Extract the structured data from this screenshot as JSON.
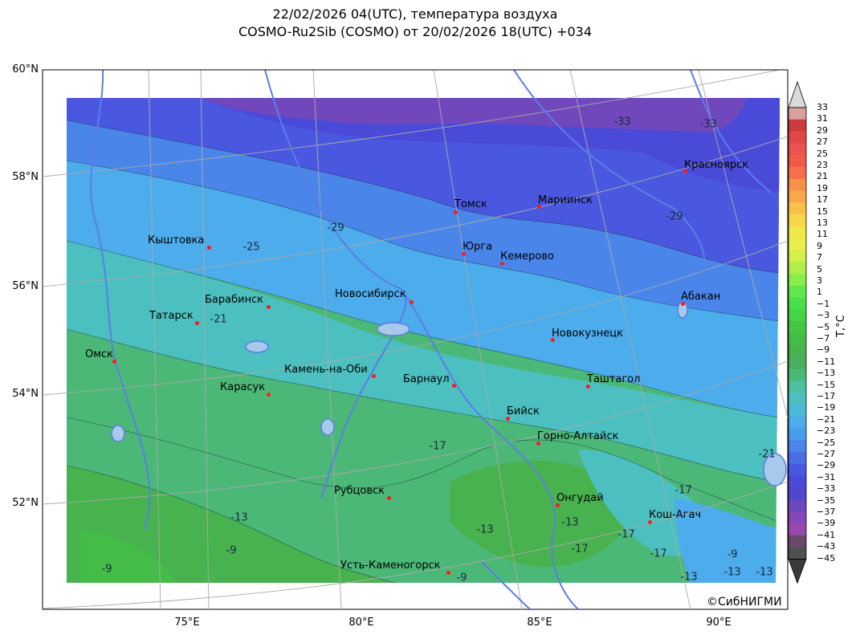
{
  "title": {
    "line1": "22/02/2026 04(UTC), температура воздуха",
    "line2": "COSMO-Ru2Sib (COSMO) от 20/02/2026 18(UTC) +034"
  },
  "axes": {
    "lat_labels": [
      "60°N",
      "58°N",
      "56°N",
      "54°N",
      "52°N"
    ],
    "lon_labels": [
      "75°E",
      "80°E",
      "85°E",
      "90°E"
    ]
  },
  "colorbar": {
    "label": "T,°C",
    "ticks": [
      "33",
      "31",
      "29",
      "27",
      "25",
      "23",
      "21",
      "19",
      "17",
      "15",
      "13",
      "11",
      "9",
      "7",
      "5",
      "3",
      "1",
      "−1",
      "−3",
      "−5",
      "−7",
      "−9",
      "−11",
      "−13",
      "−15",
      "−17",
      "−19",
      "−21",
      "−23",
      "−25",
      "−27",
      "−29",
      "−31",
      "−33",
      "−35",
      "−37",
      "−39",
      "−41",
      "−43",
      "−45"
    ],
    "colors": [
      "#d9d9d9",
      "#d9a0a0",
      "#cc3b3b",
      "#e04848",
      "#ec5252",
      "#f05a4a",
      "#f5704a",
      "#f5914a",
      "#f7a84a",
      "#f7c04a",
      "#f5d84a",
      "#f0e84a",
      "#e8ee4a",
      "#d4ee4a",
      "#b0ee4a",
      "#8aee4a",
      "#60e84a",
      "#48e04a",
      "#44d446",
      "#44c844",
      "#46bc48",
      "#48b24e",
      "#4aae60",
      "#4cb878",
      "#4cc0a0",
      "#4cc0c0",
      "#4cb8d8",
      "#4cacec",
      "#4a9cec",
      "#4a86ea",
      "#4a6ee6",
      "#4a58e0",
      "#4a4ad8",
      "#5048cc",
      "#6a48c0",
      "#8648b8",
      "#9a48b0",
      "#6a4a6a",
      "#505050",
      "#3a3a3a"
    ]
  },
  "cities": [
    {
      "name": "Красноярск"
    },
    {
      "name": "Томск"
    },
    {
      "name": "Мариинск"
    },
    {
      "name": "Кыштовка"
    },
    {
      "name": "Юрга"
    },
    {
      "name": "Кемерово"
    },
    {
      "name": "Барабинск"
    },
    {
      "name": "Новосибирск"
    },
    {
      "name": "Абакан"
    },
    {
      "name": "Татарск"
    },
    {
      "name": "Новокузнецк"
    },
    {
      "name": "Омск"
    },
    {
      "name": "Камень-на-Оби"
    },
    {
      "name": "Барнаул"
    },
    {
      "name": "Таштагол"
    },
    {
      "name": "Карасук"
    },
    {
      "name": "Бийск"
    },
    {
      "name": "Горно-Алтайск"
    },
    {
      "name": "Рубцовск"
    },
    {
      "name": "Онгудай"
    },
    {
      "name": "Кош-Агач"
    },
    {
      "name": "Усть-Каменогорск"
    }
  ],
  "contour_labels": [
    "-33",
    "-33",
    "-29",
    "-29",
    "-25",
    "-21",
    "-17",
    "-21",
    "-17",
    "-13",
    "-13",
    "-9",
    "-9",
    "-13",
    "-17",
    "-17",
    "-17",
    "-9",
    "-13",
    "-13",
    "-9",
    "-13"
  ],
  "copyright": "©СибНИГМИ"
}
